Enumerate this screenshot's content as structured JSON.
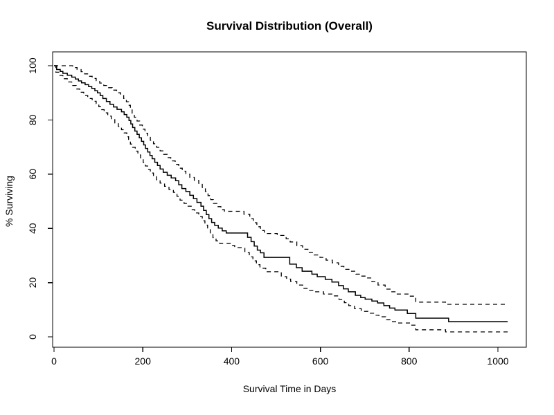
{
  "chart_data": {
    "type": "line",
    "subtype": "kaplan-meier-step",
    "title": "Survival Distribution (Overall)",
    "xlabel": "Survival Time in Days",
    "ylabel": "% Surviving",
    "x_ticks": [
      0,
      200,
      400,
      600,
      800,
      1000
    ],
    "y_ticks": [
      0,
      20,
      40,
      60,
      80,
      100
    ],
    "xlim": [
      0,
      1062
    ],
    "ylim": [
      -4,
      104
    ],
    "end_time": 1022,
    "grid": "off",
    "legend": "none",
    "line_color": "#000000",
    "background_color": "#ffffff",
    "series": [
      {
        "name": "survival-estimate",
        "style": "solid",
        "points": [
          [
            0,
            100
          ],
          [
            6,
            98.6
          ],
          [
            14,
            97.9
          ],
          [
            20,
            97.2
          ],
          [
            30,
            96.5
          ],
          [
            40,
            95.8
          ],
          [
            48,
            95.1
          ],
          [
            55,
            94.4
          ],
          [
            62,
            93.7
          ],
          [
            70,
            93.0
          ],
          [
            78,
            92.3
          ],
          [
            85,
            91.6
          ],
          [
            92,
            90.8
          ],
          [
            98,
            90.0
          ],
          [
            104,
            89.0
          ],
          [
            110,
            87.9
          ],
          [
            118,
            86.8
          ],
          [
            126,
            85.8
          ],
          [
            134,
            84.8
          ],
          [
            142,
            83.9
          ],
          [
            152,
            83.0
          ],
          [
            158,
            82.0
          ],
          [
            164,
            81.0
          ],
          [
            169,
            79.8
          ],
          [
            173,
            78.5
          ],
          [
            177,
            77.2
          ],
          [
            182,
            75.9
          ],
          [
            187,
            74.7
          ],
          [
            192,
            73.4
          ],
          [
            197,
            72.1
          ],
          [
            202,
            70.8
          ],
          [
            206,
            69.5
          ],
          [
            211,
            68.2
          ],
          [
            216,
            66.9
          ],
          [
            221,
            65.7
          ],
          [
            227,
            64.4
          ],
          [
            233,
            63.2
          ],
          [
            239,
            61.9
          ],
          [
            246,
            60.7
          ],
          [
            255,
            59.6
          ],
          [
            264,
            58.6
          ],
          [
            274,
            57.6
          ],
          [
            281,
            56.1
          ],
          [
            288,
            54.7
          ],
          [
            297,
            53.6
          ],
          [
            306,
            52.2
          ],
          [
            314,
            51.0
          ],
          [
            322,
            49.6
          ],
          [
            331,
            48.2
          ],
          [
            337,
            46.6
          ],
          [
            343,
            45.1
          ],
          [
            349,
            43.6
          ],
          [
            355,
            42.2
          ],
          [
            362,
            41.1
          ],
          [
            370,
            40.1
          ],
          [
            379,
            39.1
          ],
          [
            388,
            38.3
          ],
          [
            436,
            36.7
          ],
          [
            444,
            35.1
          ],
          [
            451,
            33.5
          ],
          [
            458,
            32.0
          ],
          [
            465,
            31.0
          ],
          [
            473,
            29.3
          ],
          [
            531,
            26.8
          ],
          [
            546,
            25.5
          ],
          [
            559,
            24.2
          ],
          [
            581,
            23.1
          ],
          [
            593,
            22.2
          ],
          [
            611,
            21.2
          ],
          [
            626,
            20.2
          ],
          [
            641,
            18.9
          ],
          [
            652,
            17.7
          ],
          [
            663,
            16.6
          ],
          [
            679,
            15.3
          ],
          [
            691,
            14.5
          ],
          [
            701,
            13.9
          ],
          [
            716,
            13.2
          ],
          [
            729,
            12.5
          ],
          [
            743,
            11.5
          ],
          [
            756,
            10.6
          ],
          [
            768,
            9.9
          ],
          [
            796,
            8.6
          ],
          [
            815,
            6.9
          ],
          [
            889,
            5.6
          ]
        ]
      },
      {
        "name": "upper-confidence-band",
        "style": "dashed",
        "points": [
          [
            0,
            100
          ],
          [
            42,
            99.3
          ],
          [
            52,
            98.6
          ],
          [
            61,
            97.8
          ],
          [
            69,
            97.0
          ],
          [
            77,
            96.1
          ],
          [
            86,
            95.3
          ],
          [
            95,
            94.5
          ],
          [
            103,
            93.6
          ],
          [
            112,
            92.7
          ],
          [
            121,
            91.9
          ],
          [
            131,
            91.0
          ],
          [
            141,
            90.0
          ],
          [
            150,
            89.0
          ],
          [
            157,
            87.9
          ],
          [
            163,
            86.7
          ],
          [
            168,
            85.4
          ],
          [
            172,
            84.0
          ],
          [
            176,
            82.5
          ],
          [
            181,
            81.0
          ],
          [
            187,
            79.6
          ],
          [
            193,
            78.1
          ],
          [
            199,
            76.6
          ],
          [
            205,
            75.1
          ],
          [
            211,
            73.8
          ],
          [
            217,
            72.5
          ],
          [
            224,
            71.2
          ],
          [
            231,
            69.9
          ],
          [
            239,
            68.6
          ],
          [
            247,
            67.3
          ],
          [
            255,
            66.1
          ],
          [
            263,
            64.9
          ],
          [
            273,
            63.6
          ],
          [
            281,
            62.2
          ],
          [
            289,
            61.1
          ],
          [
            297,
            60.0
          ],
          [
            306,
            58.8
          ],
          [
            316,
            57.7
          ],
          [
            326,
            56.6
          ],
          [
            334,
            55.1
          ],
          [
            341,
            53.6
          ],
          [
            347,
            52.1
          ],
          [
            353,
            50.6
          ],
          [
            359,
            49.2
          ],
          [
            367,
            48.0
          ],
          [
            376,
            46.9
          ],
          [
            384,
            46.3
          ],
          [
            428,
            45.2
          ],
          [
            441,
            43.6
          ],
          [
            449,
            42.1
          ],
          [
            457,
            40.6
          ],
          [
            465,
            39.2
          ],
          [
            474,
            38.1
          ],
          [
            503,
            37.4
          ],
          [
            523,
            36.2
          ],
          [
            532,
            35.0
          ],
          [
            547,
            33.6
          ],
          [
            560,
            32.3
          ],
          [
            572,
            31.1
          ],
          [
            586,
            30.2
          ],
          [
            599,
            29.3
          ],
          [
            613,
            28.3
          ],
          [
            627,
            27.3
          ],
          [
            641,
            26.0
          ],
          [
            653,
            24.9
          ],
          [
            666,
            24.2
          ],
          [
            680,
            23.1
          ],
          [
            691,
            22.4
          ],
          [
            702,
            21.7
          ],
          [
            716,
            20.4
          ],
          [
            730,
            19.1
          ],
          [
            746,
            17.6
          ],
          [
            759,
            16.6
          ],
          [
            770,
            15.8
          ],
          [
            801,
            15.0
          ],
          [
            815,
            12.8
          ],
          [
            882,
            12.0
          ]
        ]
      },
      {
        "name": "lower-confidence-band",
        "style": "dashed",
        "points": [
          [
            0,
            100
          ],
          [
            4,
            97.6
          ],
          [
            12,
            96.4
          ],
          [
            20,
            95.2
          ],
          [
            30,
            94.0
          ],
          [
            40,
            92.7
          ],
          [
            50,
            91.4
          ],
          [
            58,
            90.2
          ],
          [
            67,
            89.0
          ],
          [
            76,
            87.9
          ],
          [
            86,
            86.9
          ],
          [
            95,
            86.0
          ],
          [
            101,
            84.9
          ],
          [
            107,
            83.8
          ],
          [
            113,
            82.6
          ],
          [
            121,
            81.4
          ],
          [
            129,
            80.1
          ],
          [
            137,
            78.9
          ],
          [
            145,
            77.6
          ],
          [
            152,
            76.4
          ],
          [
            158,
            75.2
          ],
          [
            164,
            73.8
          ],
          [
            168,
            72.4
          ],
          [
            172,
            71.1
          ],
          [
            177,
            69.9
          ],
          [
            183,
            68.5
          ],
          [
            189,
            67.1
          ],
          [
            195,
            65.7
          ],
          [
            201,
            64.3
          ],
          [
            206,
            63.0
          ],
          [
            211,
            61.7
          ],
          [
            217,
            60.4
          ],
          [
            224,
            59.1
          ],
          [
            231,
            57.9
          ],
          [
            239,
            56.7
          ],
          [
            249,
            55.5
          ],
          [
            259,
            54.4
          ],
          [
            269,
            53.3
          ],
          [
            277,
            51.8
          ],
          [
            284,
            50.4
          ],
          [
            293,
            49.2
          ],
          [
            301,
            48.2
          ],
          [
            309,
            46.9
          ],
          [
            317,
            45.7
          ],
          [
            326,
            44.4
          ],
          [
            334,
            42.8
          ],
          [
            340,
            41.2
          ],
          [
            346,
            39.7
          ],
          [
            352,
            38.1
          ],
          [
            358,
            36.6
          ],
          [
            365,
            35.4
          ],
          [
            373,
            34.5
          ],
          [
            397,
            33.7
          ],
          [
            407,
            32.9
          ],
          [
            430,
            31.1
          ],
          [
            440,
            29.5
          ],
          [
            448,
            28.0
          ],
          [
            456,
            26.6
          ],
          [
            464,
            25.3
          ],
          [
            477,
            24.0
          ],
          [
            512,
            22.2
          ],
          [
            524,
            21.3
          ],
          [
            533,
            20.4
          ],
          [
            547,
            19.1
          ],
          [
            560,
            17.9
          ],
          [
            574,
            17.2
          ],
          [
            587,
            16.6
          ],
          [
            607,
            15.8
          ],
          [
            627,
            15.1
          ],
          [
            642,
            13.8
          ],
          [
            654,
            12.6
          ],
          [
            664,
            11.5
          ],
          [
            677,
            10.4
          ],
          [
            692,
            9.4
          ],
          [
            707,
            8.7
          ],
          [
            720,
            8.0
          ],
          [
            732,
            7.4
          ],
          [
            747,
            6.3
          ],
          [
            760,
            5.6
          ],
          [
            771,
            5.1
          ],
          [
            801,
            4.3
          ],
          [
            815,
            2.6
          ],
          [
            882,
            1.8
          ]
        ]
      }
    ]
  }
}
